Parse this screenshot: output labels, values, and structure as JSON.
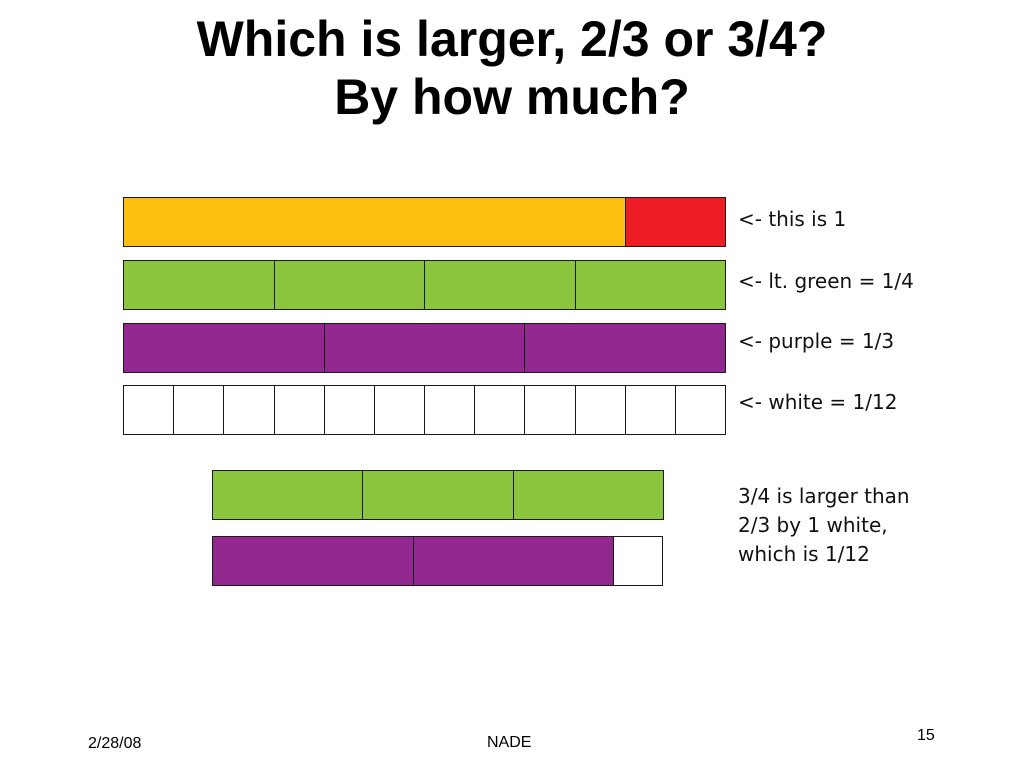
{
  "slide": {
    "title_line1": "Which is larger, 2/3 or 3/4?",
    "title_line2": "By how much?"
  },
  "colors": {
    "yellow": "#FDBF10",
    "red": "#EE1C25",
    "green": "#8CC63F",
    "purple": "#92278F",
    "white": "#FFFFFF"
  },
  "labels": {
    "whole": "<- this is 1",
    "green": "<- lt. green = 1/4",
    "purple": "<- purple = 1/3",
    "white": "<- white = 1/12"
  },
  "conclusion": {
    "line1": "3/4 is larger than",
    "line2": "2/3 by 1 white,",
    "line3": "which is 1/12"
  },
  "footer": {
    "date": "2/28/08",
    "center": "NADE",
    "page": "15"
  }
}
